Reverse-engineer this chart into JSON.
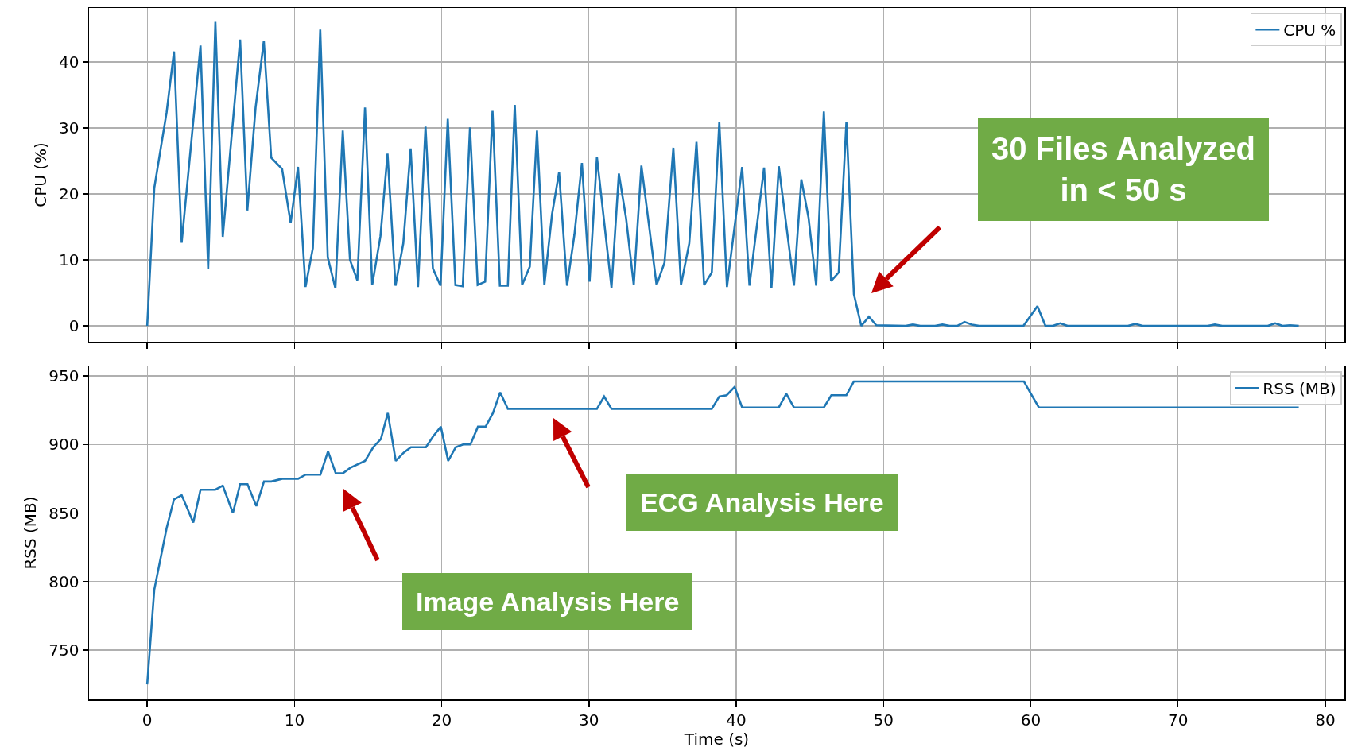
{
  "chart_data": [
    {
      "type": "line",
      "ylabel": "CPU (%)",
      "grid": true,
      "legend": "top right",
      "tick_labels": "y",
      "xlim": [
        -3.95,
        81.3
      ],
      "xticks": [
        0,
        10,
        20,
        30,
        40,
        50,
        60,
        70,
        80
      ],
      "ylim": [
        -2.4,
        48.2
      ],
      "yticks": [
        0,
        10,
        20,
        30,
        40
      ],
      "x": [
        0,
        0.48,
        1.32,
        1.82,
        2.34,
        3.62,
        4.14,
        4.63,
        5.13,
        6.31,
        6.8,
        7.36,
        7.92,
        8.42,
        9.16,
        9.74,
        10.24,
        10.75,
        11.25,
        11.75,
        12.26,
        12.78,
        13.28,
        13.77,
        14.27,
        14.79,
        15.28,
        15.84,
        16.32,
        16.86,
        17.39,
        17.89,
        18.39,
        18.9,
        19.4,
        19.92,
        20.41,
        20.93,
        21.43,
        21.92,
        22.44,
        22.95,
        23.45,
        23.95,
        24.49,
        24.96,
        25.46,
        25.98,
        26.47,
        26.97,
        27.49,
        27.97,
        28.51,
        29.01,
        29.52,
        30.04,
        30.54,
        31.53,
        32.03,
        32.52,
        33.04,
        33.56,
        34.59,
        35.13,
        35.73,
        36.25,
        36.81,
        37.3,
        37.82,
        38.34,
        38.85,
        39.37,
        40.4,
        40.9,
        41.89,
        42.39,
        42.89,
        43.92,
        44.42,
        44.91,
        45.43,
        45.95,
        46.44,
        46.96,
        47.48,
        47.99,
        48.49,
        49.01,
        49.51,
        51.5,
        52.0,
        52.5,
        53.5,
        54.0,
        54.5,
        55.0,
        55.5,
        56.0,
        56.5,
        59.5,
        60.45,
        61.0,
        61.5,
        62.0,
        62.5,
        66.6,
        67.1,
        67.6,
        72.0,
        72.5,
        73.0,
        76.1,
        76.6,
        77.1,
        77.6,
        78.2
      ],
      "series": [
        {
          "name": "CPU %",
          "color": "#1f77b4",
          "values": [
            0,
            20.9,
            32.4,
            41.6,
            12.6,
            42.5,
            8.6,
            46.1,
            13.5,
            43.4,
            17.5,
            33.1,
            43.2,
            25.5,
            23.8,
            15.6,
            24.1,
            5.9,
            11.8,
            44.9,
            10.4,
            5.7,
            29.6,
            10.0,
            6.9,
            33.1,
            6.2,
            13.6,
            26.1,
            6.1,
            12.5,
            26.9,
            5.9,
            30.2,
            8.7,
            6.1,
            31.4,
            6.2,
            6.0,
            30.1,
            6.2,
            6.7,
            32.6,
            6.1,
            6.1,
            33.5,
            6.2,
            9.0,
            29.6,
            6.2,
            16.9,
            23.3,
            6.1,
            13.8,
            24.7,
            6.7,
            25.6,
            5.8,
            23.1,
            16.3,
            6.2,
            24.3,
            6.2,
            9.6,
            27.0,
            6.2,
            12.5,
            27.9,
            6.2,
            8.1,
            30.9,
            5.9,
            24.1,
            6.1,
            24.0,
            5.7,
            24.2,
            6.1,
            22.2,
            16.4,
            6.1,
            32.5,
            6.8,
            8.1,
            30.9,
            4.8,
            0,
            1.4,
            0.1,
            0,
            0.2,
            0,
            0,
            0.2,
            0,
            0,
            0.6,
            0.2,
            0,
            0,
            3.0,
            0,
            0,
            0.4,
            0,
            0,
            0.3,
            0,
            0,
            0.2,
            0,
            0,
            0.4,
            0,
            0.1,
            0
          ]
        }
      ],
      "annotations": [
        "30 Files Analyzed\nin < 50 s"
      ]
    },
    {
      "type": "line",
      "xlabel": "Time (s)",
      "ylabel": "RSS (MB)",
      "grid": true,
      "legend": "top right",
      "xlim": [
        -3.95,
        81.3
      ],
      "xticks": [
        0,
        10,
        20,
        30,
        40,
        50,
        60,
        70,
        80
      ],
      "ylim": [
        714,
        957
      ],
      "yticks": [
        750,
        800,
        850,
        900,
        950
      ],
      "x": [
        0,
        0.48,
        1.32,
        1.82,
        2.34,
        3.13,
        3.62,
        4.62,
        5.13,
        5.82,
        6.31,
        6.81,
        7.41,
        7.93,
        8.43,
        9.17,
        10.25,
        10.77,
        11.76,
        12.28,
        12.8,
        13.29,
        13.79,
        14.79,
        15.35,
        15.87,
        16.34,
        16.88,
        17.41,
        17.91,
        18.93,
        19.42,
        19.94,
        20.44,
        20.95,
        21.45,
        21.95,
        22.46,
        22.98,
        23.48,
        23.97,
        24.49,
        30.54,
        31.03,
        31.53,
        38.34,
        38.85,
        39.35,
        39.89,
        40.4,
        42.89,
        43.4,
        43.92,
        45.95,
        46.46,
        47.48,
        47.99,
        59.53,
        60.55,
        78.2
      ],
      "series": [
        {
          "name": "RSS (MB)",
          "color": "#1f77b4",
          "values": [
            725,
            794,
            839,
            860,
            863,
            843,
            867,
            867,
            870,
            850,
            871,
            871,
            855,
            873,
            873,
            875,
            875,
            878,
            878,
            895,
            879,
            879,
            883,
            888,
            898,
            904,
            923,
            888,
            894,
            898,
            898,
            906,
            913,
            888,
            898,
            900,
            900,
            913,
            913,
            923,
            938,
            926,
            926,
            935,
            926,
            926,
            935,
            936,
            942,
            927,
            927,
            937,
            927,
            927,
            936,
            936,
            946,
            946,
            927,
            927
          ]
        }
      ],
      "annotations": [
        "Image Analysis Here",
        "ECG Analysis Here"
      ]
    }
  ]
}
